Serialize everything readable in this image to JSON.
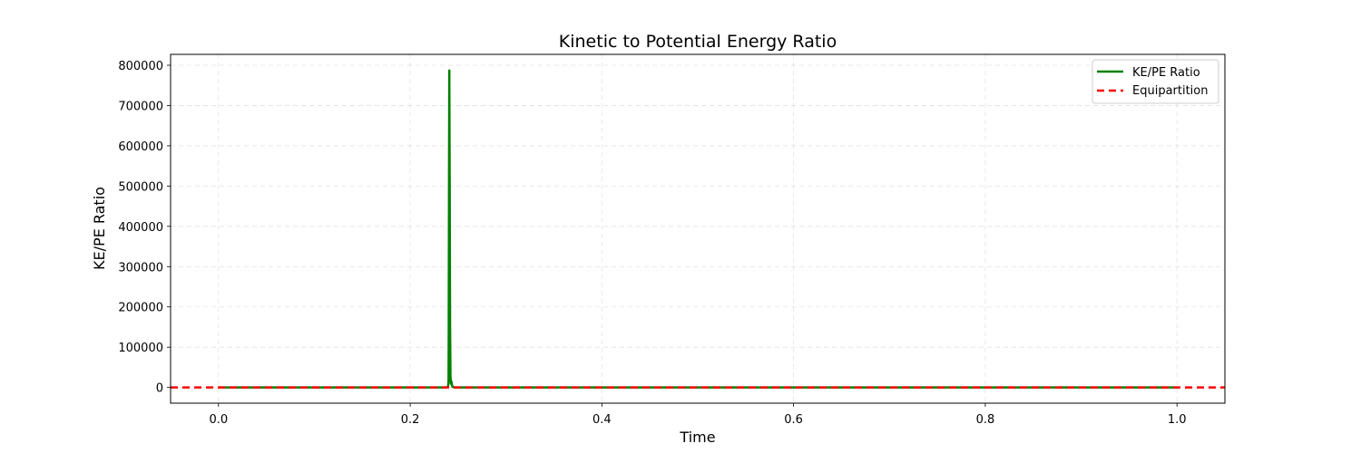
{
  "chart_data": {
    "type": "line",
    "title": "Kinetic to Potential Energy Ratio",
    "xlabel": "Time",
    "ylabel": "KE/PE Ratio",
    "xlim": [
      -0.05,
      1.05
    ],
    "ylim": [
      -39000,
      827000
    ],
    "xticks": [
      "0.0",
      "0.2",
      "0.4",
      "0.6",
      "0.8",
      "1.0"
    ],
    "xtick_values": [
      0.0,
      0.2,
      0.4,
      0.6,
      0.8,
      1.0
    ],
    "yticks": [
      "0",
      "100000",
      "200000",
      "300000",
      "400000",
      "500000",
      "600000",
      "700000",
      "800000"
    ],
    "ytick_values": [
      0,
      100000,
      200000,
      300000,
      400000,
      500000,
      600000,
      700000,
      800000
    ],
    "grid": true,
    "legend_position": "top-right",
    "series": [
      {
        "name": "KE/PE Ratio",
        "color": "#008000",
        "style": "solid",
        "x": [
          0.0,
          0.1,
          0.2,
          0.235,
          0.238,
          0.2395,
          0.24,
          0.2402,
          0.2405,
          0.2408,
          0.2412,
          0.2416,
          0.242,
          0.2425,
          0.243,
          0.2435,
          0.244,
          0.246,
          0.25,
          0.3,
          0.5,
          0.7,
          0.9,
          1.0
        ],
        "y": [
          0,
          0,
          0,
          0,
          300,
          2000,
          15000,
          120000,
          500000,
          787000,
          500000,
          150000,
          30000,
          9000,
          15000,
          8000,
          2000,
          300,
          0,
          0,
          0,
          0,
          0,
          0
        ]
      },
      {
        "name": "Equipartition",
        "color": "#ff0000",
        "style": "dashed",
        "x": [
          -0.05,
          1.05
        ],
        "y": [
          1,
          1
        ]
      }
    ]
  }
}
